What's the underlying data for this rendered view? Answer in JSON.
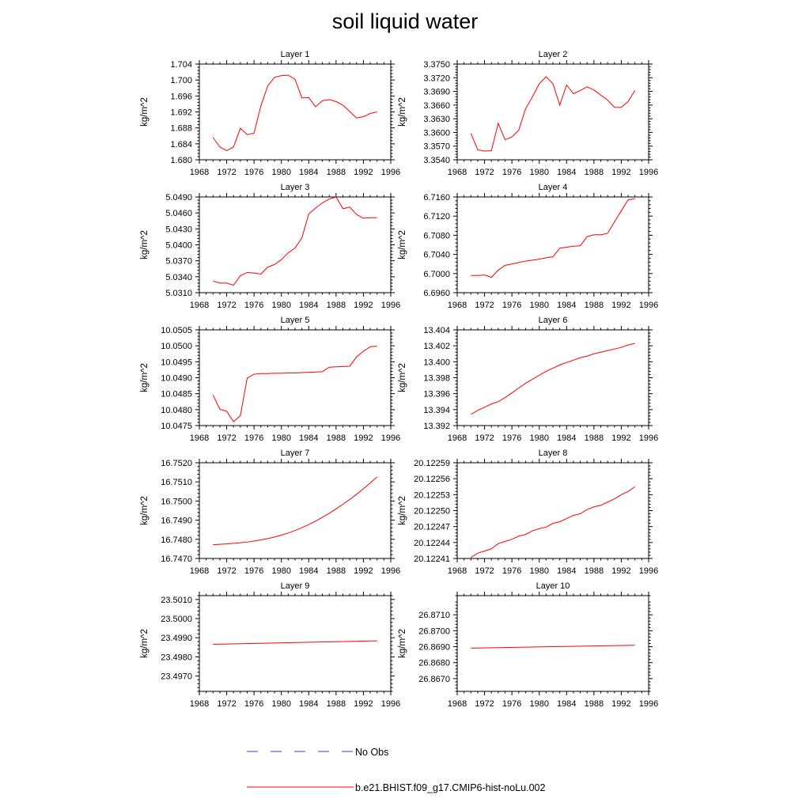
{
  "title": "soil liquid water",
  "legend": {
    "placement": "bottom-center",
    "entries": [
      {
        "label": "No Obs",
        "color": "#3a3aff",
        "style": "dashed"
      },
      {
        "label": "b.e21.BHIST.f09_g17.CMIP6-hist-noLu.002",
        "color": "#ff0000",
        "style": "solid"
      }
    ]
  },
  "chart_data": [
    {
      "type": "line",
      "title": "Layer 1",
      "xlabel": "",
      "ylabel": "kg/m^2",
      "xlim": [
        1968,
        1996
      ],
      "xticks": [
        "1968",
        "1972",
        "1976",
        "1980",
        "1984",
        "1988",
        "1992",
        "1996"
      ],
      "ylim": [
        1.68,
        1.704
      ],
      "yticks": [
        "1.680",
        "1.684",
        "1.688",
        "1.692",
        "1.696",
        "1.700",
        "1.704"
      ],
      "x": [
        1970,
        1971,
        1972,
        1973,
        1974,
        1975,
        1976,
        1977,
        1978,
        1979,
        1980,
        1981,
        1982,
        1983,
        1984,
        1985,
        1986,
        1987,
        1988,
        1989,
        1990,
        1991,
        1992,
        1993,
        1994
      ],
      "series": [
        {
          "name": "b.e21.BHIST.f09_g17.CMIP6-hist-noLu.002",
          "color": "#ff0000",
          "values": [
            1.6856,
            1.6832,
            1.6823,
            1.6832,
            1.6879,
            1.6863,
            1.6867,
            1.6935,
            1.6985,
            1.7007,
            1.7011,
            1.7012,
            1.7002,
            1.6955,
            1.6956,
            1.6933,
            1.6948,
            1.6951,
            1.6946,
            1.6937,
            1.6921,
            1.6905,
            1.6908,
            1.6916,
            1.692
          ]
        }
      ]
    },
    {
      "type": "line",
      "title": "Layer 2",
      "xlabel": "",
      "ylabel": "kg/m^2",
      "xlim": [
        1968,
        1996
      ],
      "xticks": [
        "1968",
        "1972",
        "1976",
        "1980",
        "1984",
        "1988",
        "1992",
        "1996"
      ],
      "ylim": [
        3.354,
        3.375
      ],
      "yticks": [
        "3.3540",
        "3.3570",
        "3.3600",
        "3.3630",
        "3.3660",
        "3.3690",
        "3.3720",
        "3.3750"
      ],
      "x": [
        1970,
        1971,
        1972,
        1973,
        1974,
        1975,
        1976,
        1977,
        1978,
        1979,
        1980,
        1981,
        1982,
        1983,
        1984,
        1985,
        1986,
        1987,
        1988,
        1989,
        1990,
        1991,
        1992,
        1993,
        1994
      ],
      "series": [
        {
          "name": "b.e21.BHIST.f09_g17.CMIP6-hist-noLu.002",
          "color": "#ff0000",
          "values": [
            3.3598,
            3.3562,
            3.3559,
            3.356,
            3.362,
            3.3584,
            3.359,
            3.3605,
            3.3652,
            3.3678,
            3.3707,
            3.3722,
            3.3707,
            3.366,
            3.3704,
            3.3685,
            3.3692,
            3.37,
            3.3693,
            3.3682,
            3.3671,
            3.3655,
            3.3655,
            3.3668,
            3.3692
          ]
        }
      ]
    },
    {
      "type": "line",
      "title": "Layer 3",
      "xlabel": "",
      "ylabel": "kg/m^2",
      "xlim": [
        1968,
        1996
      ],
      "xticks": [
        "1968",
        "1972",
        "1976",
        "1980",
        "1984",
        "1988",
        "1992",
        "1996"
      ],
      "ylim": [
        5.031,
        5.049
      ],
      "yticks": [
        "5.0310",
        "5.0340",
        "5.0370",
        "5.0400",
        "5.0430",
        "5.0460",
        "5.0490"
      ],
      "x": [
        1970,
        1971,
        1972,
        1973,
        1974,
        1975,
        1976,
        1977,
        1978,
        1979,
        1980,
        1981,
        1982,
        1983,
        1984,
        1985,
        1986,
        1987,
        1988,
        1989,
        1990,
        1991,
        1992,
        1993,
        1994
      ],
      "series": [
        {
          "name": "b.e21.BHIST.f09_g17.CMIP6-hist-noLu.002",
          "color": "#ff0000",
          "values": [
            5.0332,
            5.0328,
            5.0328,
            5.0324,
            5.0342,
            5.0348,
            5.0347,
            5.0345,
            5.0358,
            5.0363,
            5.0372,
            5.0385,
            5.0394,
            5.0413,
            5.0458,
            5.0469,
            5.0479,
            5.0486,
            5.049,
            5.0468,
            5.0471,
            5.0457,
            5.045,
            5.0451,
            5.0451
          ]
        }
      ]
    },
    {
      "type": "line",
      "title": "Layer 4",
      "xlabel": "",
      "ylabel": "kg/m^2",
      "xlim": [
        1968,
        1996
      ],
      "xticks": [
        "1968",
        "1972",
        "1976",
        "1980",
        "1984",
        "1988",
        "1992",
        "1996"
      ],
      "ylim": [
        6.696,
        6.716
      ],
      "yticks": [
        "6.6960",
        "6.7000",
        "6.7040",
        "6.7080",
        "6.7120",
        "6.7160"
      ],
      "x": [
        1970,
        1971,
        1972,
        1973,
        1974,
        1975,
        1976,
        1977,
        1978,
        1979,
        1980,
        1981,
        1982,
        1983,
        1984,
        1985,
        1986,
        1987,
        1988,
        1989,
        1990,
        1991,
        1992,
        1993,
        1994
      ],
      "series": [
        {
          "name": "b.e21.BHIST.f09_g17.CMIP6-hist-noLu.002",
          "color": "#ff0000",
          "values": [
            6.6996,
            6.6996,
            6.6997,
            6.6992,
            6.7007,
            6.7017,
            6.702,
            6.7023,
            6.7026,
            6.7028,
            6.703,
            6.7033,
            6.7035,
            6.7053,
            6.7055,
            6.7057,
            6.7058,
            6.7077,
            6.7081,
            6.7081,
            6.7084,
            6.7108,
            6.7131,
            6.7154,
            6.7156
          ]
        }
      ]
    },
    {
      "type": "line",
      "title": "Layer 5",
      "xlabel": "",
      "ylabel": "kg/m^2",
      "xlim": [
        1968,
        1996
      ],
      "xticks": [
        "1968",
        "1972",
        "1976",
        "1980",
        "1984",
        "1988",
        "1992",
        "1996"
      ],
      "ylim": [
        10.0475,
        10.0505
      ],
      "yticks": [
        "10.0475",
        "10.0480",
        "10.0485",
        "10.0490",
        "10.0495",
        "10.0500",
        "10.0505"
      ],
      "x": [
        1970,
        1971,
        1972,
        1973,
        1974,
        1975,
        1976,
        1977,
        1978,
        1979,
        1980,
        1981,
        1982,
        1983,
        1984,
        1985,
        1986,
        1987,
        1988,
        1989,
        1990,
        1991,
        1992,
        1993,
        1994
      ],
      "series": [
        {
          "name": "b.e21.BHIST.f09_g17.CMIP6-hist-noLu.002",
          "color": "#ff0000",
          "values": [
            10.04846,
            10.04801,
            10.04795,
            10.04762,
            10.04781,
            10.04899,
            10.04911,
            10.04913,
            10.04913,
            10.04914,
            10.04914,
            10.04915,
            10.04915,
            10.04916,
            10.04917,
            10.04918,
            10.04919,
            10.04933,
            10.04934,
            10.04935,
            10.04936,
            10.04965,
            10.04983,
            10.04997,
            10.04999
          ]
        }
      ]
    },
    {
      "type": "line",
      "title": "Layer 6",
      "xlabel": "",
      "ylabel": "kg/m^2",
      "xlim": [
        1968,
        1996
      ],
      "xticks": [
        "1968",
        "1972",
        "1976",
        "1980",
        "1984",
        "1988",
        "1992",
        "1996"
      ],
      "ylim": [
        13.392,
        13.404
      ],
      "yticks": [
        "13.392",
        "13.394",
        "13.396",
        "13.398",
        "13.400",
        "13.402",
        "13.404"
      ],
      "x": [
        1970,
        1971,
        1972,
        1973,
        1974,
        1975,
        1976,
        1977,
        1978,
        1979,
        1980,
        1981,
        1982,
        1983,
        1984,
        1985,
        1986,
        1987,
        1988,
        1989,
        1990,
        1991,
        1992,
        1993,
        1994
      ],
      "series": [
        {
          "name": "b.e21.BHIST.f09_g17.CMIP6-hist-noLu.002",
          "color": "#ff0000",
          "values": [
            13.3934,
            13.3939,
            13.3943,
            13.3947,
            13.395,
            13.3955,
            13.3961,
            13.3967,
            13.3973,
            13.3978,
            13.3983,
            13.3988,
            13.3992,
            13.3996,
            13.3999,
            13.4002,
            13.4005,
            13.4007,
            13.401,
            13.4012,
            13.4014,
            13.4016,
            13.4018,
            13.4021,
            13.4023
          ]
        }
      ]
    },
    {
      "type": "line",
      "title": "Layer 7",
      "xlabel": "",
      "ylabel": "kg/m^2",
      "xlim": [
        1968,
        1996
      ],
      "xticks": [
        "1968",
        "1972",
        "1976",
        "1980",
        "1984",
        "1988",
        "1992",
        "1996"
      ],
      "ylim": [
        16.747,
        16.752
      ],
      "yticks": [
        "16.7470",
        "16.7480",
        "16.7490",
        "16.7500",
        "16.7510",
        "16.7520"
      ],
      "x": [
        1970,
        1971,
        1972,
        1973,
        1974,
        1975,
        1976,
        1977,
        1978,
        1979,
        1980,
        1981,
        1982,
        1983,
        1984,
        1985,
        1986,
        1987,
        1988,
        1989,
        1990,
        1991,
        1992,
        1993,
        1994
      ],
      "series": [
        {
          "name": "b.e21.BHIST.f09_g17.CMIP6-hist-noLu.002",
          "color": "#ff0000",
          "values": [
            16.74772,
            16.74774,
            16.74776,
            16.74779,
            16.74782,
            16.74786,
            16.74791,
            16.74797,
            16.74804,
            16.74812,
            16.74822,
            16.74833,
            16.74846,
            16.74861,
            16.74877,
            16.74895,
            16.74915,
            16.74936,
            16.74959,
            16.74983,
            16.75008,
            16.75035,
            16.75064,
            16.75094,
            16.75126
          ]
        }
      ]
    },
    {
      "type": "line",
      "title": "Layer 8",
      "xlabel": "",
      "ylabel": "kg/m^2",
      "xlim": [
        1968,
        1996
      ],
      "xticks": [
        "1968",
        "1972",
        "1976",
        "1980",
        "1984",
        "1988",
        "1992",
        "1996"
      ],
      "ylim": [
        20.12241,
        20.12259
      ],
      "yticks": [
        "20.12241",
        "20.12244",
        "20.12247",
        "20.12250",
        "20.12253",
        "20.12256",
        "20.12259"
      ],
      "x": [
        1970,
        1971,
        1972,
        1973,
        1974,
        1975,
        1976,
        1977,
        1978,
        1979,
        1980,
        1981,
        1982,
        1983,
        1984,
        1985,
        1986,
        1987,
        1988,
        1989,
        1990,
        1991,
        1992,
        1993,
        1994
      ],
      "series": [
        {
          "name": "b.e21.BHIST.f09_g17.CMIP6-hist-noLu.002",
          "color": "#ff0000",
          "values": [
            20.122412,
            20.12242,
            20.122424,
            20.122428,
            20.122438,
            20.122442,
            20.122446,
            20.122452,
            20.122455,
            20.122462,
            20.122466,
            20.122469,
            20.122476,
            20.122479,
            20.122485,
            20.122491,
            20.122494,
            20.122502,
            20.122507,
            20.12251,
            20.122516,
            20.122522,
            20.12253,
            20.122536,
            20.122545
          ]
        }
      ]
    },
    {
      "type": "line",
      "title": "Layer 9",
      "xlabel": "",
      "ylabel": "kg/m^2",
      "xlim": [
        1968,
        1996
      ],
      "xticks": [
        "1968",
        "1972",
        "1976",
        "1980",
        "1984",
        "1988",
        "1992",
        "1996"
      ],
      "ylim": [
        23.4962,
        23.5012
      ],
      "yticks": [
        "23.4970",
        "23.4980",
        "23.4990",
        "23.5000",
        "23.5010"
      ],
      "x": [
        1970,
        1994
      ],
      "series": [
        {
          "name": "b.e21.BHIST.f09_g17.CMIP6-hist-noLu.002",
          "color": "#ff0000",
          "values": [
            23.49866,
            23.49884
          ]
        }
      ]
    },
    {
      "type": "line",
      "title": "Layer 10",
      "xlabel": "",
      "ylabel": "kg/m^2",
      "xlim": [
        1968,
        1996
      ],
      "xticks": [
        "1968",
        "1972",
        "1976",
        "1980",
        "1984",
        "1988",
        "1992",
        "1996"
      ],
      "ylim": [
        26.8662,
        26.8722
      ],
      "yticks": [
        "26.8670",
        "26.8680",
        "26.8690",
        "26.8700",
        "26.8710"
      ],
      "x": [
        1970,
        1994
      ],
      "series": [
        {
          "name": "b.e21.BHIST.f09_g17.CMIP6-hist-noLu.002",
          "color": "#ff0000",
          "values": [
            26.86891,
            26.86909
          ]
        }
      ]
    }
  ]
}
